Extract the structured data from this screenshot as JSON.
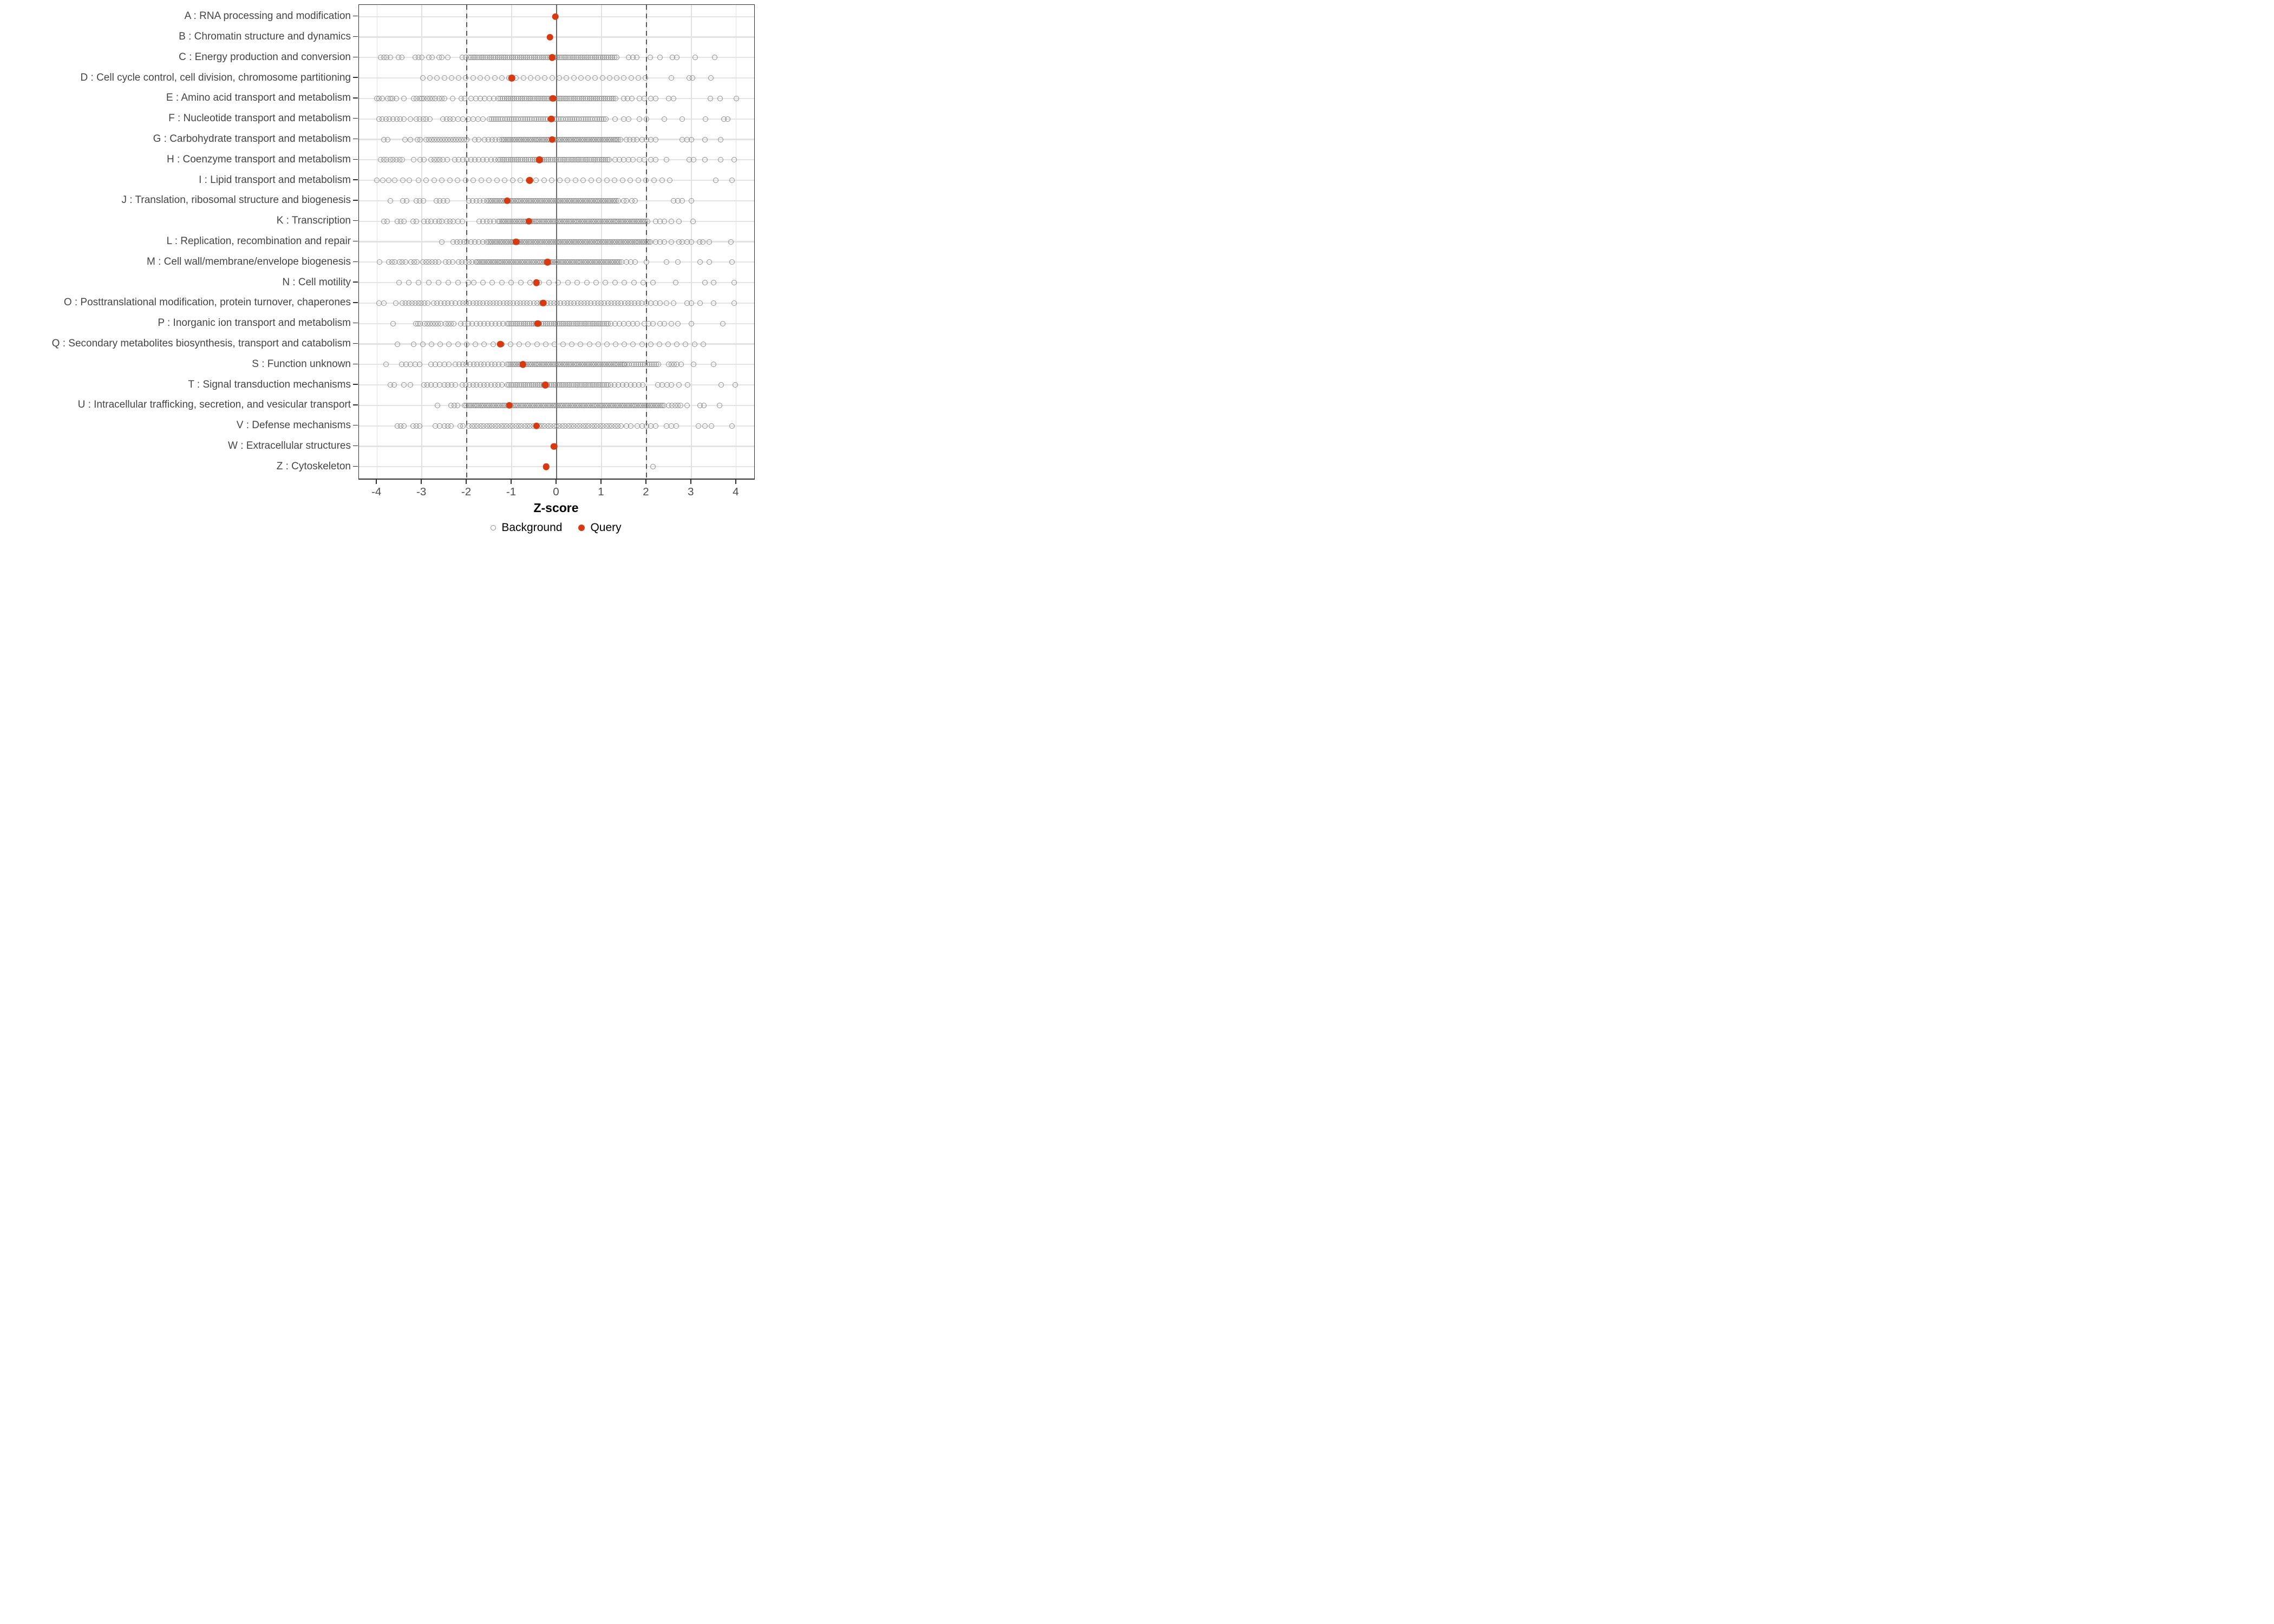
{
  "chart_data": {
    "type": "scatter",
    "subtype": "strip-dot-plot",
    "title": "",
    "xlabel": "Z-score",
    "ylabel": "",
    "xlim": [
      -4.4,
      4.4
    ],
    "x_ticks": [
      -4,
      -3,
      -2,
      -1,
      0,
      1,
      2,
      3,
      4
    ],
    "grid": "on",
    "reference_lines": {
      "solid_at": [
        0
      ],
      "dashed_at": [
        -2,
        2
      ]
    },
    "legend_position": "bottom-center",
    "legend": [
      {
        "label": "Background",
        "marker": "open-circle",
        "color": "#8c8c8c"
      },
      {
        "label": "Query",
        "marker": "filled-circle",
        "color": "#d53a10"
      }
    ],
    "series": [
      {
        "name": "Background",
        "marker": "open-circle",
        "color": "#8c8c8c"
      },
      {
        "name": "Query",
        "marker": "filled-circle",
        "color": "#d53a10"
      }
    ],
    "categories": [
      {
        "code": "A",
        "label": "A : RNA processing and modification",
        "query": -0.03,
        "background": {
          "bands": [],
          "points": []
        }
      },
      {
        "code": "B",
        "label": "B : Chromatin structure and dynamics",
        "query": -0.15,
        "background": {
          "bands": [],
          "points": []
        }
      },
      {
        "code": "C",
        "label": "C : Energy production and conversion",
        "query": -0.1,
        "background": {
          "bands": [
            [
              -1.95,
              1.35,
              0.045
            ]
          ],
          "points": [
            -3.92,
            -3.85,
            -3.78,
            -3.7,
            -3.52,
            -3.45,
            -3.15,
            -3.07,
            -3.0,
            -2.85,
            -2.77,
            -2.62,
            -2.55,
            -2.42,
            -2.1,
            -2.02,
            1.6,
            1.7,
            1.78,
            2.08,
            2.3,
            2.58,
            2.68,
            3.08,
            3.52
          ]
        }
      },
      {
        "code": "D",
        "label": "D : Cell cycle control, cell division, chromosome partitioning",
        "query": -1.0,
        "background": {
          "bands": [
            [
              -2.98,
              2.0,
              0.16
            ]
          ],
          "points": [
            2.55,
            2.95,
            3.02,
            3.44
          ]
        }
      },
      {
        "code": "E",
        "label": "E : Amino acid transport and metabolism",
        "query": -0.08,
        "background": {
          "bands": [
            [
              -1.9,
              -1.3,
              0.1
            ],
            [
              -1.25,
              1.35,
              0.045
            ]
          ],
          "points": [
            -4.0,
            -3.95,
            -3.88,
            -3.76,
            -3.7,
            -3.65,
            -3.57,
            -3.4,
            -3.18,
            -3.12,
            -3.05,
            -3.0,
            -2.95,
            -2.88,
            -2.82,
            -2.76,
            -2.7,
            -2.62,
            -2.55,
            -2.5,
            -2.32,
            -2.12,
            -2.05,
            1.5,
            1.58,
            1.68,
            1.85,
            1.95,
            2.1,
            2.2,
            2.5,
            2.6,
            3.42,
            3.64,
            4.0
          ]
        }
      },
      {
        "code": "F",
        "label": "F : Nucleotide transport and metabolism",
        "query": -0.12,
        "background": {
          "bands": [
            [
              -2.19,
              -1.55,
              0.11
            ],
            [
              -1.5,
              1.1,
              0.05
            ]
          ],
          "points": [
            -3.95,
            -3.88,
            -3.8,
            -3.72,
            -3.64,
            -3.56,
            -3.48,
            -3.4,
            -3.25,
            -3.12,
            -3.05,
            -2.97,
            -2.9,
            -2.82,
            -2.53,
            -2.45,
            -2.37,
            -2.3,
            1.3,
            1.5,
            1.6,
            1.85,
            2.0,
            2.4,
            2.8,
            3.32,
            3.73,
            3.81
          ]
        }
      },
      {
        "code": "G",
        "label": "G : Carbohydrate transport and metabolism",
        "query": -0.1,
        "background": {
          "bands": [
            [
              -2.9,
              -2.0,
              0.06
            ],
            [
              -1.6,
              -1.28,
              0.08
            ],
            [
              -1.22,
              1.45,
              0.04
            ]
          ],
          "points": [
            -3.85,
            -3.76,
            -3.38,
            -3.26,
            -3.1,
            -3.04,
            -1.82,
            -1.74,
            1.55,
            1.63,
            1.71,
            1.79,
            1.9,
            2.0,
            2.1,
            2.2,
            2.8,
            2.9,
            3.0,
            3.3,
            3.65
          ]
        }
      },
      {
        "code": "H",
        "label": "H : Coenzyme transport and metabolism",
        "query": -0.38,
        "background": {
          "bands": [
            [
              -2.27,
              -1.35,
              0.09
            ],
            [
              -1.3,
              1.2,
              0.045
            ]
          ],
          "points": [
            -3.92,
            -3.85,
            -3.78,
            -3.7,
            -3.64,
            -3.57,
            -3.5,
            -3.43,
            -3.18,
            -3.04,
            -2.95,
            -2.8,
            -2.73,
            -2.67,
            -2.6,
            -2.53,
            -2.43,
            1.3,
            1.4,
            1.5,
            1.6,
            1.7,
            1.85,
            1.95,
            2.1,
            2.2,
            2.45,
            2.95,
            3.05,
            3.3,
            3.65,
            3.95
          ]
        }
      },
      {
        "code": "I",
        "label": "I : Lipid transport and metabolism",
        "query": -0.6,
        "background": {
          "bands": [
            [
              -3.08,
              2.65,
              0.175
            ]
          ],
          "points": [
            -4.0,
            -3.87,
            -3.74,
            -3.6,
            -3.42,
            -3.28,
            3.55,
            3.9
          ]
        }
      },
      {
        "code": "J",
        "label": "J : Translation, ribosomal structure and biogenesis",
        "query": -1.1,
        "background": {
          "bands": [
            [
              -1.95,
              -1.6,
              0.08
            ],
            [
              -1.55,
              1.4,
              0.04
            ]
          ],
          "points": [
            -3.7,
            -3.42,
            -3.34,
            -3.12,
            -3.05,
            -2.97,
            -2.68,
            -2.6,
            -2.52,
            -2.44,
            1.5,
            1.56,
            1.68,
            1.75,
            2.6,
            2.7,
            2.8,
            3.0
          ]
        }
      },
      {
        "code": "K",
        "label": "K : Transcription",
        "query": -0.62,
        "background": {
          "bands": [
            [
              -1.72,
              -1.36,
              0.08
            ],
            [
              -1.3,
              2.04,
              0.04
            ]
          ],
          "points": [
            -3.85,
            -3.77,
            -3.55,
            -3.47,
            -3.4,
            -3.2,
            -3.12,
            -2.95,
            -2.87,
            -2.8,
            -2.7,
            -2.62,
            -2.55,
            -2.45,
            -2.37,
            -2.3,
            -2.2,
            -2.1,
            2.2,
            2.3,
            2.4,
            2.56,
            2.73,
            3.04
          ]
        }
      },
      {
        "code": "L",
        "label": "L : Replication, recombination and repair",
        "query": -0.9,
        "background": {
          "bands": [
            [
              -2.3,
              -2.06,
              0.08
            ],
            [
              -2.0,
              -1.6,
              0.09
            ],
            [
              -1.55,
              2.1,
              0.04
            ]
          ],
          "points": [
            -2.55,
            2.2,
            2.3,
            2.4,
            2.55,
            2.72,
            2.8,
            2.9,
            3.0,
            3.18,
            3.25,
            3.4,
            3.88
          ]
        }
      },
      {
        "code": "M",
        "label": "M : Cell wall/membrane/envelope biogenesis",
        "query": -0.2,
        "background": {
          "bands": [
            [
              -3.74,
              -3.54,
              0.07
            ],
            [
              -3.5,
              -3.3,
              0.07
            ],
            [
              -3.24,
              -3.05,
              0.065
            ],
            [
              -2.98,
              -2.6,
              0.07
            ],
            [
              -2.47,
              -2.25,
              0.075
            ],
            [
              -2.18,
              -1.85,
              0.075
            ],
            [
              -1.8,
              1.4,
              0.04
            ]
          ],
          "points": [
            -3.94,
            1.45,
            1.55,
            1.65,
            1.75,
            2.0,
            2.45,
            2.7,
            3.2,
            3.4,
            3.9
          ]
        }
      },
      {
        "code": "N",
        "label": "N : Cell motility",
        "query": -0.45,
        "background": {
          "bands": [
            [
              -3.51,
              -1.97,
              0.22
            ],
            [
              -1.85,
              2.15,
              0.21
            ]
          ],
          "points": [
            2.65,
            3.3,
            3.5,
            3.95
          ]
        }
      },
      {
        "code": "O",
        "label": "O : Posttranslational modification, protein turnover, chaperones",
        "query": -0.3,
        "background": {
          "bands": [
            [
              -3.43,
              -2.87,
              0.07
            ],
            [
              -2.74,
              -2.26,
              0.08
            ],
            [
              -2.16,
              1.9,
              0.075
            ]
          ],
          "points": [
            -3.95,
            -3.85,
            -3.58,
            2.0,
            2.1,
            2.2,
            2.3,
            2.45,
            2.6,
            2.9,
            3.0,
            3.2,
            3.5,
            3.95
          ]
        }
      },
      {
        "code": "P",
        "label": "P : Inorganic ion transport and metabolism",
        "query": -0.42,
        "background": {
          "bands": [
            [
              -2.94,
              -2.58,
              0.06
            ],
            [
              -2.47,
              -2.29,
              0.06
            ],
            [
              -2.13,
              -1.15,
              0.085
            ],
            [
              -1.1,
              1.15,
              0.045
            ],
            [
              1.2,
              1.8,
              0.1
            ]
          ],
          "points": [
            -3.64,
            -3.14,
            -3.09,
            -3.04,
            1.95,
            2.05,
            2.15,
            2.3,
            2.4,
            2.55,
            2.7,
            3.0,
            3.7
          ]
        }
      },
      {
        "code": "Q",
        "label": "Q : Secondary metabolites biosynthesis, transport and catabolism",
        "query": -1.25,
        "background": {
          "bands": [
            [
              -2.0,
              3.4,
              0.195
            ]
          ],
          "points": [
            -3.55,
            -3.18,
            -2.98,
            -2.79,
            -2.59,
            -2.4,
            -2.2
          ]
        }
      },
      {
        "code": "S",
        "label": "S : Function unknown",
        "query": -0.75,
        "background": {
          "bands": [
            [
              -2.25,
              -1.15,
              0.08
            ],
            [
              -1.1,
              1.5,
              0.04
            ],
            [
              1.52,
              2.3,
              0.05
            ]
          ],
          "points": [
            -3.8,
            -3.45,
            -3.35,
            -3.25,
            -3.15,
            -3.05,
            -2.8,
            -2.7,
            -2.6,
            -2.5,
            -2.4,
            2.5,
            2.56,
            2.62,
            2.68,
            2.77,
            3.05,
            3.5
          ]
        }
      },
      {
        "code": "T",
        "label": "T : Signal transduction mechanisms",
        "query": -0.25,
        "background": {
          "bands": [
            [
              -2.1,
              -1.15,
              0.08
            ],
            [
              -1.1,
              1.15,
              0.045
            ],
            [
              1.2,
              1.95,
              0.09
            ]
          ],
          "points": [
            -3.7,
            -3.62,
            -3.4,
            -3.25,
            -2.95,
            -2.88,
            -2.8,
            -2.7,
            -2.6,
            -2.5,
            -2.42,
            -2.34,
            -2.25,
            2.25,
            2.35,
            2.46,
            2.55,
            2.73,
            2.92,
            3.67,
            3.98
          ]
        }
      },
      {
        "code": "U",
        "label": "U : Intracellular trafficking, secretion, and vesicular transport",
        "query": -1.05,
        "background": {
          "bands": [
            [
              -2.35,
              -2.2,
              0.07
            ],
            [
              -2.05,
              2.42,
              0.04
            ]
          ],
          "points": [
            -2.65,
            2.5,
            2.57,
            2.64,
            2.7,
            2.76,
            2.9,
            3.2,
            3.28,
            3.63
          ]
        }
      },
      {
        "code": "V",
        "label": "V : Defense mechanisms",
        "query": -0.45,
        "background": {
          "bands": [
            [
              -1.95,
              1.45,
              0.065
            ]
          ],
          "points": [
            -3.55,
            -3.47,
            -3.4,
            -3.2,
            -3.12,
            -3.05,
            -2.7,
            -2.6,
            -2.5,
            -2.42,
            -2.35,
            -2.15,
            -2.08,
            1.55,
            1.65,
            1.8,
            1.9,
            2.0,
            2.1,
            2.2,
            2.45,
            2.55,
            2.66,
            3.16,
            3.3,
            3.45,
            3.9
          ]
        }
      },
      {
        "code": "W",
        "label": "W : Extracellular structures",
        "query": -0.06,
        "background": {
          "bands": [],
          "points": []
        }
      },
      {
        "code": "Z",
        "label": "Z : Cytoskeleton",
        "query": -0.23,
        "background": {
          "bands": [],
          "points": [
            2.15
          ]
        }
      }
    ]
  },
  "colors": {
    "query": "#d53a10",
    "background_stroke": "#8c8c8c",
    "grid_major": "#e3e3e3",
    "reference_line": "#5a5a5a",
    "axis_text": "#4d4d4d",
    "panel_border": "#2f2f2f"
  }
}
